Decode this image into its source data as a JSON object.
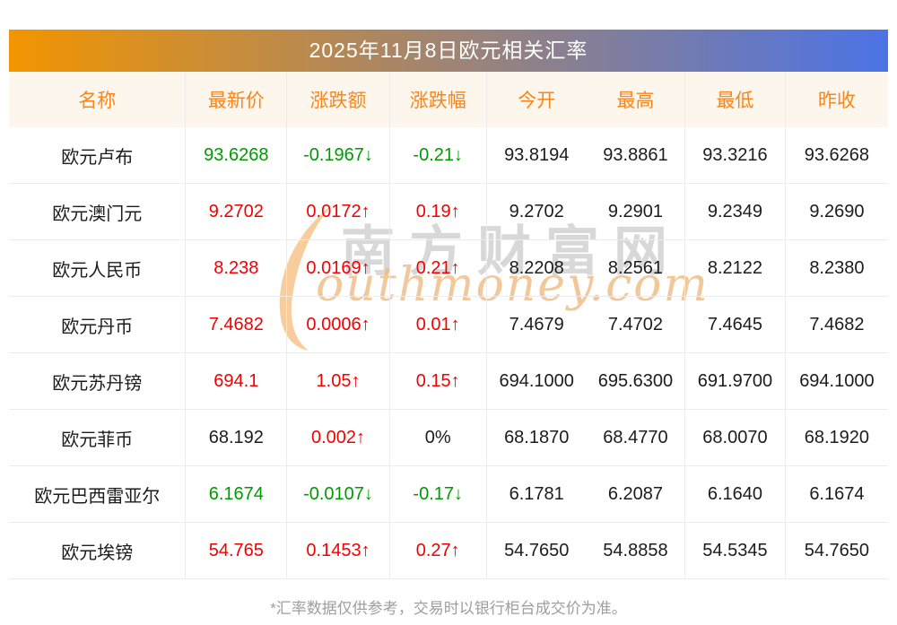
{
  "title": "2025年11月8日欧元相关汇率",
  "columns": [
    "名称",
    "最新价",
    "涨跌额",
    "涨跌幅",
    "今开",
    "最高",
    "最低",
    "昨收"
  ],
  "rows": [
    {
      "name": "欧元卢布",
      "latest": "93.6268",
      "latest_color": "green",
      "change": "-0.1967↓",
      "change_color": "green",
      "pct": "-0.21↓",
      "pct_color": "green",
      "open": "93.8194",
      "high": "93.8861",
      "low": "93.3216",
      "prev_close": "93.6268"
    },
    {
      "name": "欧元澳门元",
      "latest": "9.2702",
      "latest_color": "red",
      "change": "0.0172↑",
      "change_color": "red",
      "pct": "0.19↑",
      "pct_color": "red",
      "open": "9.2702",
      "high": "9.2901",
      "low": "9.2349",
      "prev_close": "9.2690"
    },
    {
      "name": "欧元人民币",
      "latest": "8.238",
      "latest_color": "red",
      "change": "0.0169↑",
      "change_color": "red",
      "pct": "0.21↑",
      "pct_color": "red",
      "open": "8.2208",
      "high": "8.2561",
      "low": "8.2122",
      "prev_close": "8.2380"
    },
    {
      "name": "欧元丹币",
      "latest": "7.4682",
      "latest_color": "red",
      "change": "0.0006↑",
      "change_color": "red",
      "pct": "0.01↑",
      "pct_color": "red",
      "open": "7.4679",
      "high": "7.4702",
      "low": "7.4645",
      "prev_close": "7.4682"
    },
    {
      "name": "欧元苏丹镑",
      "latest": "694.1",
      "latest_color": "red",
      "change": "1.05↑",
      "change_color": "red",
      "pct": "0.15↑",
      "pct_color": "red",
      "open": "694.1000",
      "high": "695.6300",
      "low": "691.9700",
      "prev_close": "694.1000"
    },
    {
      "name": "欧元菲币",
      "latest": "68.192",
      "latest_color": "black",
      "change": "0.002↑",
      "change_color": "red",
      "pct": "0%",
      "pct_color": "black",
      "open": "68.1870",
      "high": "68.4770",
      "low": "68.0070",
      "prev_close": "68.1920"
    },
    {
      "name": "欧元巴西雷亚尔",
      "latest": "6.1674",
      "latest_color": "green",
      "change": "-0.0107↓",
      "change_color": "green",
      "pct": "-0.17↓",
      "pct_color": "green",
      "open": "6.1781",
      "high": "6.2087",
      "low": "6.1640",
      "prev_close": "6.1674"
    },
    {
      "name": "欧元埃镑",
      "latest": "54.765",
      "latest_color": "red",
      "change": "0.1453↑",
      "change_color": "red",
      "pct": "0.27↑",
      "pct_color": "red",
      "open": "54.7650",
      "high": "54.8858",
      "low": "54.5345",
      "prev_close": "54.7650"
    }
  ],
  "footer_note": "*汇率数据仅供参考，交易时以银行柜台成交价为准。",
  "watermark": {
    "cn": "南方财富网",
    "en": "outhmoney.com"
  },
  "colors": {
    "up": "#f40000",
    "down": "#009a00",
    "neutral": "#1c1c1c",
    "header_text": "#f7861c",
    "header_bg": "#fdf6ec",
    "title_gradient_start": "#f29500",
    "title_gradient_end": "#4c73e6",
    "grid_line": "#ececec"
  }
}
